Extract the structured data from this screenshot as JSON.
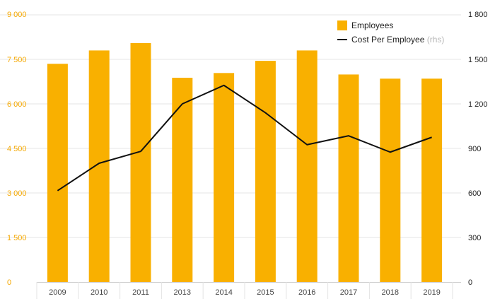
{
  "colors": {
    "bar": "#f9b000",
    "line": "#111111",
    "grid": "#e6e6e6",
    "left_axis_text": "#f5a800",
    "right_axis_text": "#222222",
    "x_axis_text": "#444444"
  },
  "chart_data": {
    "type": "bar",
    "categories": [
      "2009",
      "2010",
      "2011",
      "2013",
      "2014",
      "2015",
      "2016",
      "2017",
      "2018",
      "2019"
    ],
    "series": [
      {
        "name": "Employees",
        "type": "bar",
        "axis": "left",
        "values": [
          7350,
          7800,
          8050,
          6880,
          7040,
          7450,
          7800,
          6990,
          6850,
          6850
        ]
      },
      {
        "name": "Cost Per Employee",
        "type": "line",
        "axis": "right",
        "values": [
          615,
          800,
          880,
          1200,
          1325,
          1140,
          925,
          985,
          875,
          975
        ]
      }
    ],
    "left_axis": {
      "ylim": [
        0,
        9000
      ],
      "ticks": [
        0,
        1500,
        3000,
        4500,
        6000,
        7500,
        9000
      ],
      "tick_labels": [
        "0",
        "1 500",
        "3 000",
        "4 500",
        "6 000",
        "7 500",
        "9 000"
      ]
    },
    "right_axis": {
      "ylim": [
        0,
        1800
      ],
      "ticks": [
        0,
        300,
        600,
        900,
        1200,
        1500,
        1800
      ],
      "tick_labels": [
        "0",
        "300",
        "600",
        "900",
        "1 200",
        "1 500",
        "1 800"
      ]
    },
    "legend": {
      "placement": "top-right",
      "items": [
        {
          "label": "Employees",
          "note": ""
        },
        {
          "label": "Cost Per Employee",
          "note": "(rhs)"
        }
      ]
    },
    "grid": true
  }
}
